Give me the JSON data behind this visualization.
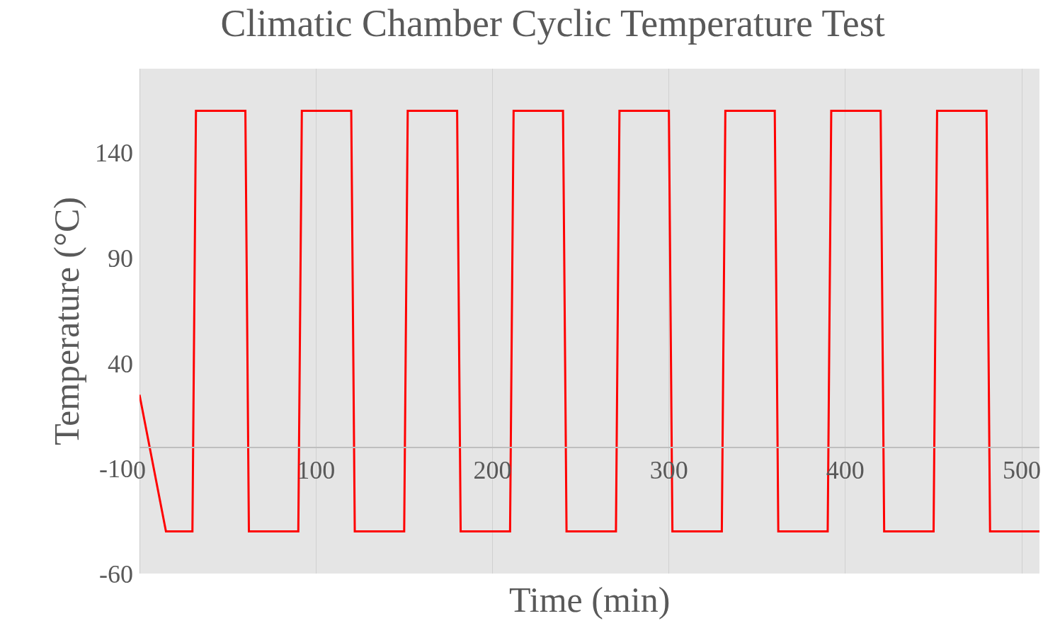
{
  "chart_data": {
    "type": "line",
    "title": "Climatic Chamber Cyclic Temperature Test",
    "xlabel": "Time (min)",
    "ylabel": "Temperature (°C)",
    "x": [
      0,
      15,
      30,
      32,
      60,
      62,
      90,
      92,
      120,
      122,
      150,
      152,
      180,
      182,
      210,
      212,
      240,
      242,
      270,
      272,
      300,
      302,
      330,
      332,
      360,
      362,
      390,
      392,
      420,
      422,
      450,
      452,
      480,
      482,
      510
    ],
    "series": [
      {
        "color": "#ff0000",
        "values": [
          25,
          -40,
          -40,
          160,
          160,
          -40,
          -40,
          160,
          160,
          -40,
          -40,
          160,
          160,
          -40,
          -40,
          160,
          160,
          -40,
          -40,
          160,
          160,
          -40,
          -40,
          160,
          160,
          -40,
          -40,
          160,
          160,
          -40,
          -40,
          160,
          160,
          -40,
          -40
        ]
      }
    ],
    "xlim": [
      0,
      510
    ],
    "ylim": [
      -60,
      180
    ],
    "xticks": [
      0,
      100,
      200,
      300,
      400,
      500
    ],
    "yticks": [
      -60,
      -10,
      40,
      90,
      140
    ],
    "grid": "x",
    "marker": "none",
    "line_style": "solid"
  }
}
